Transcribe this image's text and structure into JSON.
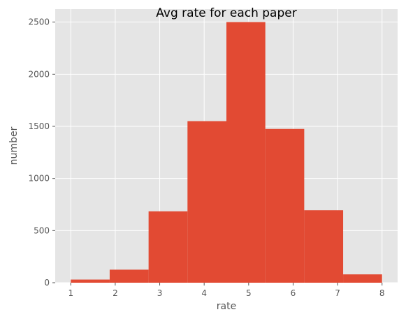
{
  "chart_data": {
    "type": "bar",
    "title": "Avg rate for each paper",
    "xlabel": "rate",
    "ylabel": "number",
    "bins": [
      {
        "start": 1.0,
        "end": 1.875,
        "value": 30
      },
      {
        "start": 1.875,
        "end": 2.75,
        "value": 125
      },
      {
        "start": 2.75,
        "end": 3.625,
        "value": 685
      },
      {
        "start": 3.625,
        "end": 4.5,
        "value": 1550
      },
      {
        "start": 4.5,
        "end": 5.375,
        "value": 2500
      },
      {
        "start": 5.375,
        "end": 6.25,
        "value": 1475
      },
      {
        "start": 6.25,
        "end": 7.125,
        "value": 695
      },
      {
        "start": 7.125,
        "end": 8.0,
        "value": 80
      }
    ],
    "xlim": [
      0.65,
      8.35
    ],
    "ylim": [
      0,
      2625
    ],
    "xticks": [
      1,
      2,
      3,
      4,
      5,
      6,
      7,
      8
    ],
    "yticks": [
      0,
      500,
      1000,
      1500,
      2000,
      2500
    ],
    "grid": true,
    "style": "ggplot",
    "colors": {
      "bar": "#E24A33",
      "plot_background": "#E5E5E5",
      "grid": "#FFFFFF",
      "text": "#555555"
    }
  }
}
